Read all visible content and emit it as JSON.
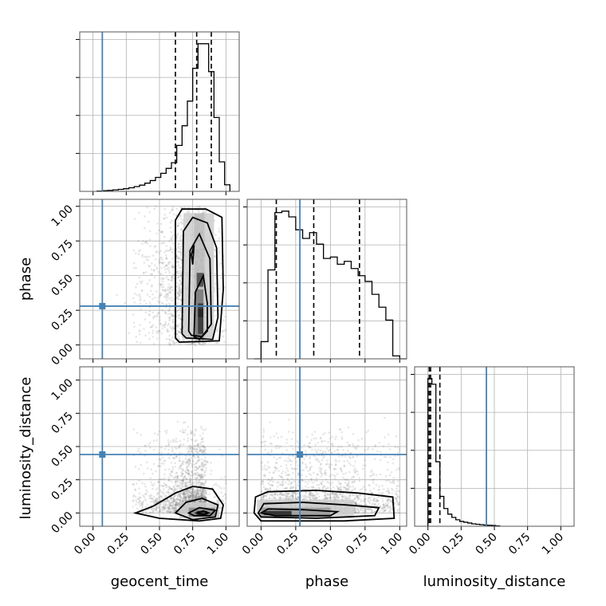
{
  "chart_data": {
    "type": "corner",
    "parameters": [
      "geocent_time",
      "phase",
      "luminosity_distance"
    ],
    "truths": {
      "geocent_time": 0.07,
      "phase": 0.28,
      "luminosity_distance": 0.44
    },
    "ticks": [
      0.0,
      0.25,
      0.5,
      0.75,
      1.0
    ],
    "tick_labels": [
      "0.00",
      "0.25",
      "0.50",
      "0.75",
      "1.00"
    ],
    "axis_ranges": {
      "geocent_time": [
        -0.1,
        1.1
      ],
      "phase": [
        -0.1,
        1.05
      ],
      "luminosity_distance": [
        -0.1,
        1.1
      ]
    },
    "grid": true,
    "marginals": {
      "geocent_time": {
        "bin_edges": [
          0.03,
          0.07,
          0.11,
          0.15,
          0.19,
          0.23,
          0.27,
          0.31,
          0.35,
          0.39,
          0.43,
          0.47,
          0.51,
          0.55,
          0.59,
          0.63,
          0.67,
          0.71,
          0.75,
          0.79,
          0.83,
          0.87,
          0.91,
          0.95,
          0.99,
          1.03
        ],
        "counts": [
          0.2,
          0.4,
          0.6,
          0.9,
          1.2,
          1.6,
          2.2,
          2.9,
          3.8,
          5.0,
          6.6,
          8.5,
          11.0,
          14.0,
          17.5,
          28.0,
          40.0,
          55.0,
          75.0,
          90.0,
          90.0,
          73.0,
          45.0,
          18.0,
          4.0
        ],
        "quantiles": [
          0.62,
          0.78,
          0.89
        ]
      },
      "phase": {
        "bin_edges": [
          -0.05,
          0.0,
          0.05,
          0.1,
          0.15,
          0.2,
          0.25,
          0.3,
          0.35,
          0.4,
          0.45,
          0.5,
          0.55,
          0.6,
          0.65,
          0.7,
          0.75,
          0.8,
          0.85,
          0.9,
          0.95,
          1.0,
          1.05
        ],
        "counts": [
          0,
          12,
          62,
          102,
          103,
          99,
          90,
          84,
          88,
          80,
          70,
          71,
          66,
          68,
          63,
          58,
          54,
          45,
          36,
          27,
          2,
          0
        ],
        "quantiles": [
          0.11,
          0.38,
          0.71
        ]
      },
      "luminosity_distance": {
        "bin_edges": [
          0.0,
          0.03,
          0.06,
          0.09,
          0.12,
          0.15,
          0.18,
          0.21,
          0.24,
          0.27,
          0.3,
          0.33,
          0.36,
          0.39,
          0.42,
          0.45,
          0.48,
          0.51,
          0.54
        ],
        "counts": [
          183,
          176,
          80,
          37,
          22,
          15,
          11,
          8,
          6,
          5,
          4,
          3,
          2.5,
          2,
          1.5,
          1.2,
          1,
          0.5
        ],
        "quantiles": [
          0.01,
          0.02,
          0.09
        ]
      }
    },
    "joint": {
      "phase_vs_geocent_time": {
        "density_peak": {
          "geocent_time": 0.81,
          "phase": 0.15
        },
        "contour_levels": [
          "0.5",
          "1.0",
          "1.5",
          "2.0 sigma"
        ]
      },
      "luminosity_distance_vs_geocent_time": {
        "density_peak": {
          "geocent_time": 0.82,
          "luminosity_distance": 0.0
        }
      },
      "luminosity_distance_vs_phase": {
        "density_peak": {
          "phase": 0.05,
          "luminosity_distance": 0.0
        }
      }
    }
  }
}
